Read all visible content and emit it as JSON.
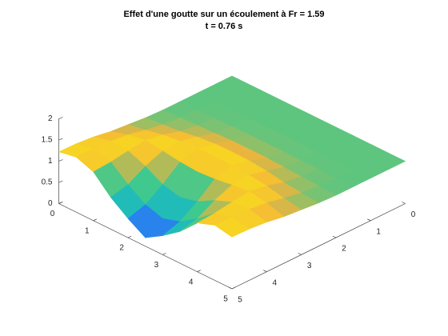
{
  "chart_data": {
    "type": "surface",
    "title": "Effet d'une goutte sur un écoulement à Fr = 1.59",
    "subtitle": "t = 0.76 s",
    "x": [
      0,
      0.5,
      1,
      1.5,
      2,
      2.5,
      3,
      3.5,
      4,
      4.5,
      5
    ],
    "y": [
      0,
      0.5,
      1,
      1.5,
      2,
      2.5,
      3,
      3.5,
      4,
      4.5,
      5
    ],
    "z": [
      [
        1,
        1,
        1,
        1,
        1,
        1,
        1,
        1,
        1,
        1,
        1
      ],
      [
        1,
        1,
        1,
        1,
        1,
        1,
        1,
        1,
        1,
        1,
        1
      ],
      [
        1,
        1,
        1,
        1,
        1,
        1,
        1,
        1,
        1,
        1,
        1
      ],
      [
        1,
        1,
        1.01,
        1.01,
        1.02,
        1.02,
        1.02,
        1.01,
        1.01,
        1,
        1
      ],
      [
        1,
        1.02,
        1.04,
        1.06,
        1.08,
        1.08,
        1.08,
        1.06,
        1.04,
        1.02,
        1
      ],
      [
        1.02,
        1.06,
        1.1,
        1.17,
        1.21,
        1.22,
        1.21,
        1.17,
        1.1,
        1.06,
        1.02
      ],
      [
        1.06,
        1.13,
        1.22,
        1.27,
        1.29,
        1.3,
        1.29,
        1.27,
        1.22,
        1.13,
        1.06
      ],
      [
        1.1,
        1.22,
        1.29,
        1.24,
        1.18,
        1.15,
        1.18,
        1.24,
        1.29,
        1.22,
        1.1
      ],
      [
        1.17,
        1.27,
        1.24,
        1.08,
        0.85,
        0.75,
        0.85,
        1.08,
        1.24,
        1.27,
        1.17
      ],
      [
        1.21,
        1.29,
        1.18,
        0.85,
        0.58,
        0.45,
        0.58,
        0.85,
        1.18,
        1.29,
        1.21
      ],
      [
        1.22,
        1.3,
        1.15,
        0.75,
        0.45,
        0.2,
        0.45,
        0.75,
        1.15,
        1.3,
        1.22
      ]
    ],
    "xlim": [
      0,
      5
    ],
    "ylim": [
      0,
      5
    ],
    "zlim": [
      0,
      2
    ],
    "xticks": [
      0,
      1,
      2,
      3,
      4,
      5
    ],
    "yticks": [
      0,
      1,
      2,
      3,
      4,
      5
    ],
    "zticks": [
      0,
      0.5,
      1,
      1.5,
      2
    ],
    "colormap": [
      "#3e26a8",
      "#2c7bf2",
      "#10b4d3",
      "#3fc98e",
      "#3fc98e",
      "#f4b43a",
      "#f9f20f"
    ],
    "clim": [
      0.2,
      1.35
    ]
  }
}
